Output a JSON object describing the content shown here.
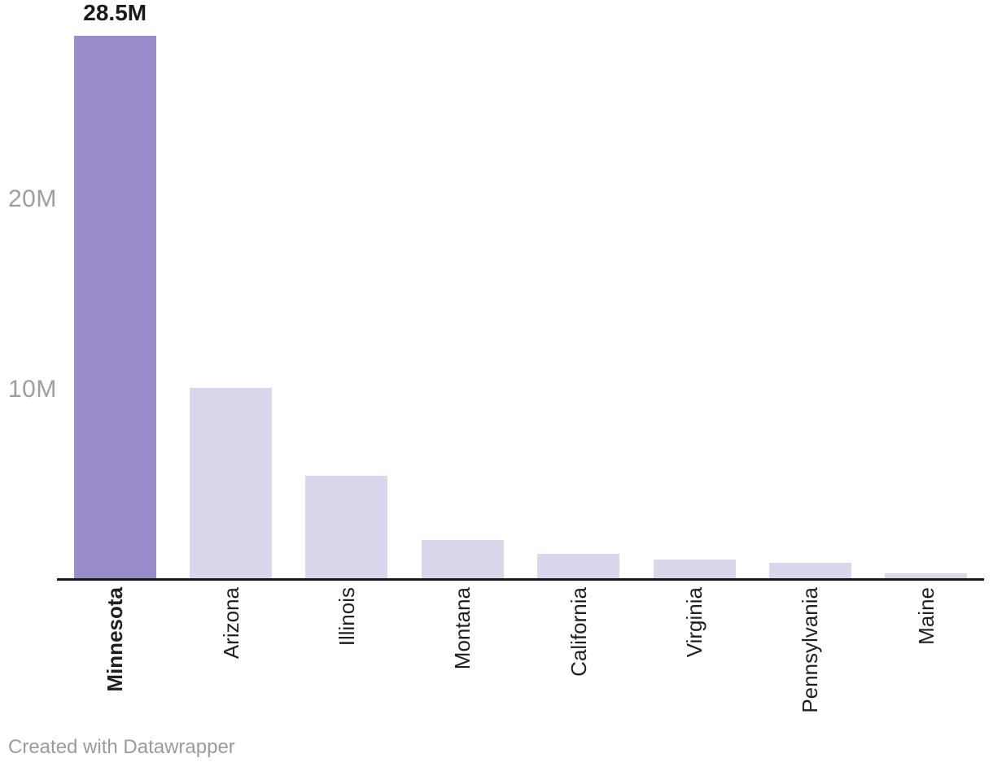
{
  "chart_data": {
    "type": "bar",
    "categories": [
      "Minnesota",
      "Arizona",
      "Illinois",
      "Montana",
      "California",
      "Virginia",
      "Pennsylvania",
      "Maine"
    ],
    "values": [
      28.5,
      10.0,
      5.4,
      2.0,
      1.3,
      1.0,
      0.8,
      0.25
    ],
    "bar_labels": [
      "28.5M",
      "",
      "",
      "",
      "",
      "",
      "",
      ""
    ],
    "highlight_index": 0,
    "title": "",
    "xlabel": "",
    "ylabel": "",
    "unit": "M",
    "ylim": [
      0,
      30.4
    ],
    "y_ticks": [
      {
        "label": "10M",
        "value": 10
      },
      {
        "label": "20M",
        "value": 20
      }
    ],
    "grid": false,
    "legend": "none",
    "bar_color_default": "#dcd6ec",
    "bar_color_highlight": "#9c8bca",
    "axis_color": "#1a1a1a",
    "tick_label_color": "#9e9e9e"
  },
  "footer": {
    "credit": "Created with Datawrapper"
  }
}
